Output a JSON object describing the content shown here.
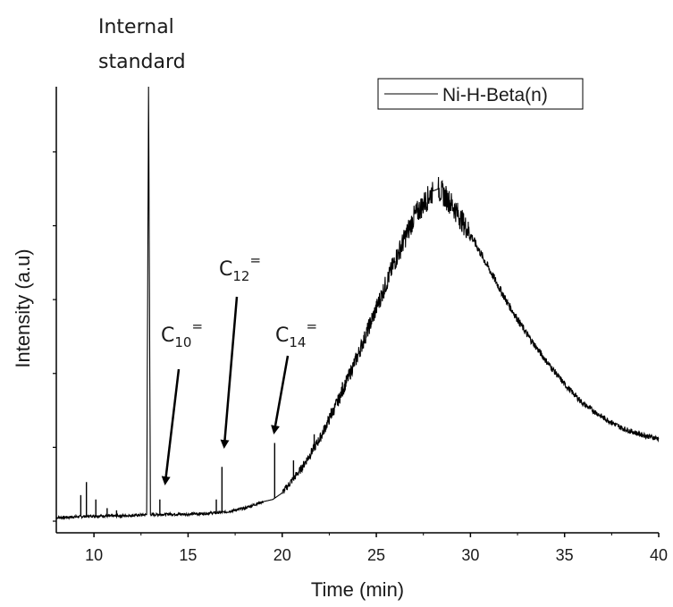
{
  "chart_data": {
    "type": "line",
    "xlabel": "Time (min)",
    "ylabel": "Intensity (a.u)",
    "xlim": [
      8,
      40
    ],
    "ylim": [
      0,
      100
    ],
    "x_ticks": [
      "10",
      "15",
      "20",
      "25",
      "30",
      "35",
      "40"
    ],
    "y_ticks_labeled": false,
    "grid": false,
    "legend": {
      "placement": "top-right",
      "entries": [
        "Ni-H-Beta(n)"
      ]
    },
    "series": [
      {
        "name": "Ni-H-Beta(n)",
        "color": "#000000",
        "x": [
          8,
          9,
          10,
          11,
          12,
          12.8,
          12.9,
          13.0,
          14,
          15,
          16,
          17,
          18,
          19,
          19.5,
          20,
          21,
          22,
          23,
          24,
          25,
          26,
          27,
          28,
          28.3,
          29,
          30,
          31,
          32,
          33,
          34,
          35,
          36,
          37,
          38,
          39,
          40
        ],
        "y": [
          0.8,
          1.0,
          1.2,
          1.2,
          1.3,
          1.5,
          100,
          1.5,
          1.6,
          1.6,
          1.8,
          2.1,
          3.0,
          4.5,
          5.0,
          6.5,
          12,
          19,
          28,
          38,
          49,
          60,
          70,
          76,
          76.5,
          73,
          66,
          58,
          50,
          43,
          37,
          31.5,
          27,
          24,
          21.5,
          20,
          19
        ]
      }
    ],
    "spikes": [
      {
        "x": 9.3,
        "y": 6
      },
      {
        "x": 9.6,
        "y": 9
      },
      {
        "x": 10.1,
        "y": 5
      },
      {
        "x": 10.7,
        "y": 3
      },
      {
        "x": 11.2,
        "y": 2.5
      },
      {
        "x": 13.5,
        "y": 5
      },
      {
        "x": 16.5,
        "y": 5
      },
      {
        "x": 16.8,
        "y": 12.5
      },
      {
        "x": 19.6,
        "y": 18
      },
      {
        "x": 20.6,
        "y": 14
      },
      {
        "x": 21.7,
        "y": 20
      },
      {
        "x": 22.6,
        "y": 26
      },
      {
        "x": 23.2,
        "y": 32
      }
    ],
    "annotations": [
      {
        "text_lines": [
          "Internal",
          "standard"
        ]
      },
      {
        "base": "C",
        "subscript": "10",
        "superscript": "="
      },
      {
        "base": "C",
        "subscript": "12",
        "superscript": "="
      },
      {
        "base": "C",
        "subscript": "14",
        "superscript": "="
      }
    ]
  }
}
